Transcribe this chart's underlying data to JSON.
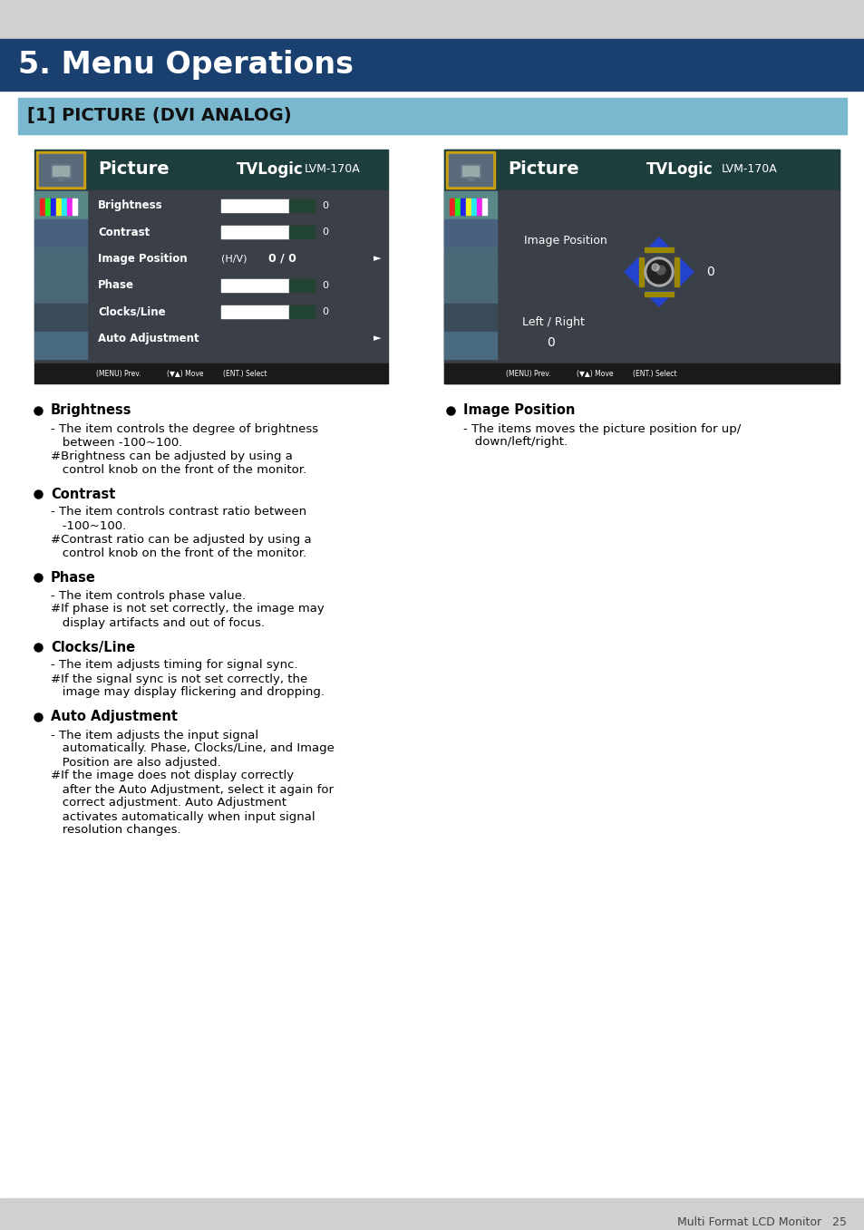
{
  "page_bg": "#d0d0d0",
  "header_bg": "#1a4070",
  "header_text": "5. Menu Operations",
  "header_text_color": "#ffffff",
  "subheader_bg": "#7ab8d0",
  "subheader_text": "[1] PICTURE (DVI ANALOG)",
  "subheader_text_color": "#111111",
  "body_bg": "#ffffff",
  "screen_header_bg": "#1e3d3d",
  "screen_body_bg": "#3a3f48",
  "screen_sidebar_bg": "#4a7070",
  "screen_items": [
    "Brightness",
    "Contrast",
    "Image Position",
    "Phase",
    "Clocks/Line",
    "Auto Adjustment"
  ],
  "screen_values": [
    "0",
    "0",
    "",
    "0",
    "0",
    ""
  ],
  "bullet_items": [
    {
      "title": "Brightness",
      "lines": [
        "- The item controls the degree of brightness",
        "   between -100~100.",
        "#Brightness can be adjusted by using a",
        "   control knob on the front of the monitor."
      ]
    },
    {
      "title": "Contrast",
      "lines": [
        "- The item controls contrast ratio between",
        "   -100~100.",
        "#Contrast ratio can be adjusted by using a",
        "   control knob on the front of the monitor."
      ]
    },
    {
      "title": "Phase",
      "lines": [
        "- The item controls phase value.",
        "#If phase is not set correctly, the image may",
        "   display artifacts and out of focus."
      ]
    },
    {
      "title": "Clocks/Line",
      "lines": [
        "- The item adjusts timing for signal sync.",
        "#If the signal sync is not set correctly, the",
        "   image may display flickering and dropping."
      ]
    },
    {
      "title": "Auto Adjustment",
      "lines": [
        "- The item adjusts the input signal",
        "   automatically. Phase, Clocks/Line, and Image",
        "   Position are also adjusted.",
        "#If the image does not display correctly",
        "   after the Auto Adjustment, select it again for",
        "   correct adjustment. Auto Adjustment",
        "   activates automatically when input signal",
        "   resolution changes."
      ]
    }
  ],
  "right_bullet_items": [
    {
      "title": "Image Position",
      "lines": [
        "- The items moves the picture position for up/",
        "   down/left/right."
      ]
    }
  ],
  "footer_text": "Multi Format LCD Monitor   25",
  "footer_text_color": "#444444"
}
